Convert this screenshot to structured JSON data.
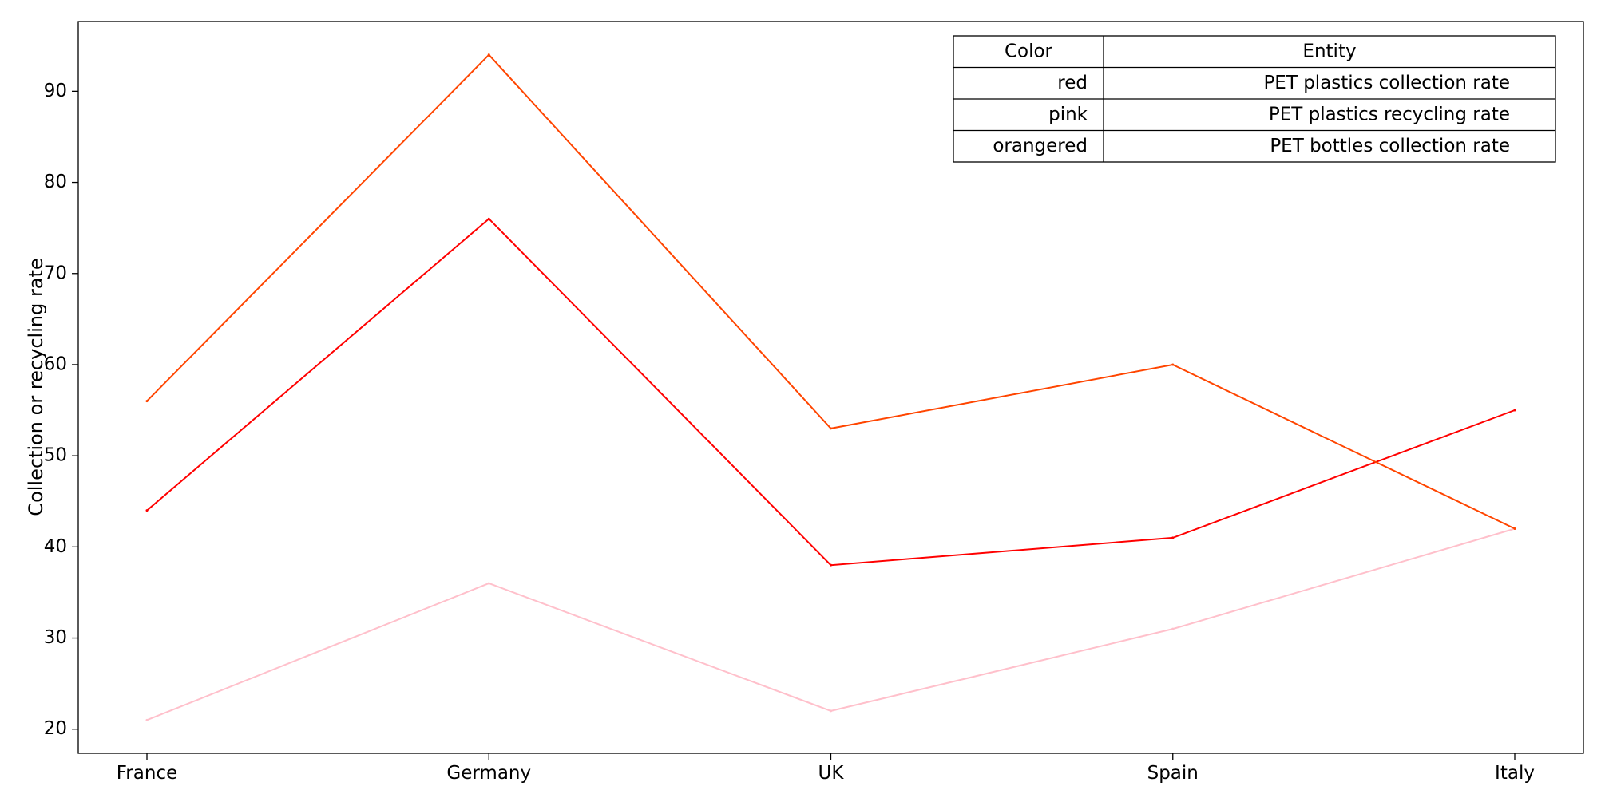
{
  "chart_data": {
    "type": "line",
    "categories": [
      "France",
      "Germany",
      "UK",
      "Spain",
      "Italy"
    ],
    "ylabel": "Collection or recycling rate",
    "xlabel": "",
    "yticks": [
      20,
      30,
      40,
      50,
      60,
      70,
      80,
      90
    ],
    "ylim": [
      17.35,
      97.65
    ],
    "grid": false,
    "legend_placement": "top-right",
    "series": [
      {
        "name": "PET plastics collection rate",
        "color": "#ff0000",
        "values": [
          44,
          76,
          38,
          41,
          55
        ]
      },
      {
        "name": "PET plastics recycling rate",
        "color": "#ffc0cb",
        "values": [
          21,
          36,
          22,
          31,
          42
        ]
      },
      {
        "name": "PET bottles collection rate",
        "color": "#ff4500",
        "values": [
          56,
          94,
          53,
          60,
          42
        ]
      }
    ],
    "legend_table": {
      "headers": [
        "Color",
        "Entity"
      ],
      "rows": [
        [
          "red",
          "PET plastics collection rate"
        ],
        [
          "pink",
          "PET plastics recycling rate"
        ],
        [
          "orangered",
          "PET bottles collection rate"
        ]
      ]
    }
  }
}
